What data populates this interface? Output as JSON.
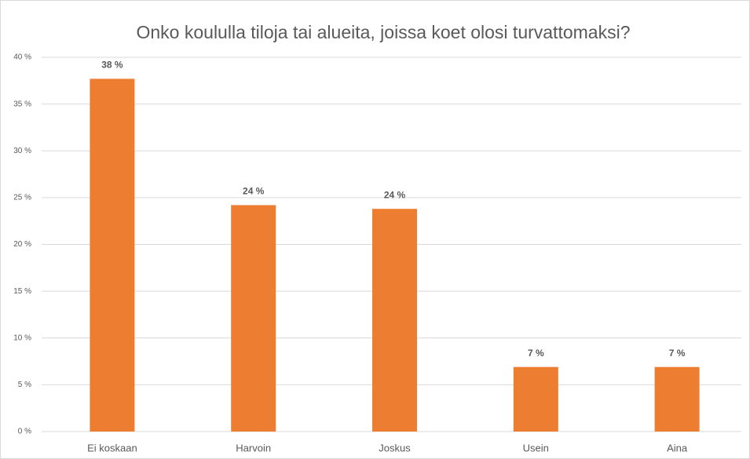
{
  "chart_data": {
    "type": "bar",
    "title": "Onko koululla tiloja tai alueita, joissa koet olosi turvattomaksi?",
    "categories": [
      "Ei koskaan",
      "Harvoin",
      "Joskus",
      "Usein",
      "Aina"
    ],
    "values": [
      37.7,
      24.2,
      23.8,
      6.9,
      6.9
    ],
    "value_labels": [
      "38 %",
      "24 %",
      "24 %",
      "7 %",
      "7 %"
    ],
    "color": "#ed7d31",
    "ylim": [
      0,
      40
    ],
    "yticks": [
      {
        "value": 0,
        "label": "0 %"
      },
      {
        "value": 5,
        "label": "5 %"
      },
      {
        "value": 10,
        "label": "10 %"
      },
      {
        "value": 15,
        "label": "15 %"
      },
      {
        "value": 20,
        "label": "20 %"
      },
      {
        "value": 25,
        "label": "25 %"
      },
      {
        "value": 30,
        "label": "30 %"
      },
      {
        "value": 35,
        "label": "35 %"
      },
      {
        "value": 40,
        "label": "40 %"
      }
    ],
    "grid": true
  }
}
